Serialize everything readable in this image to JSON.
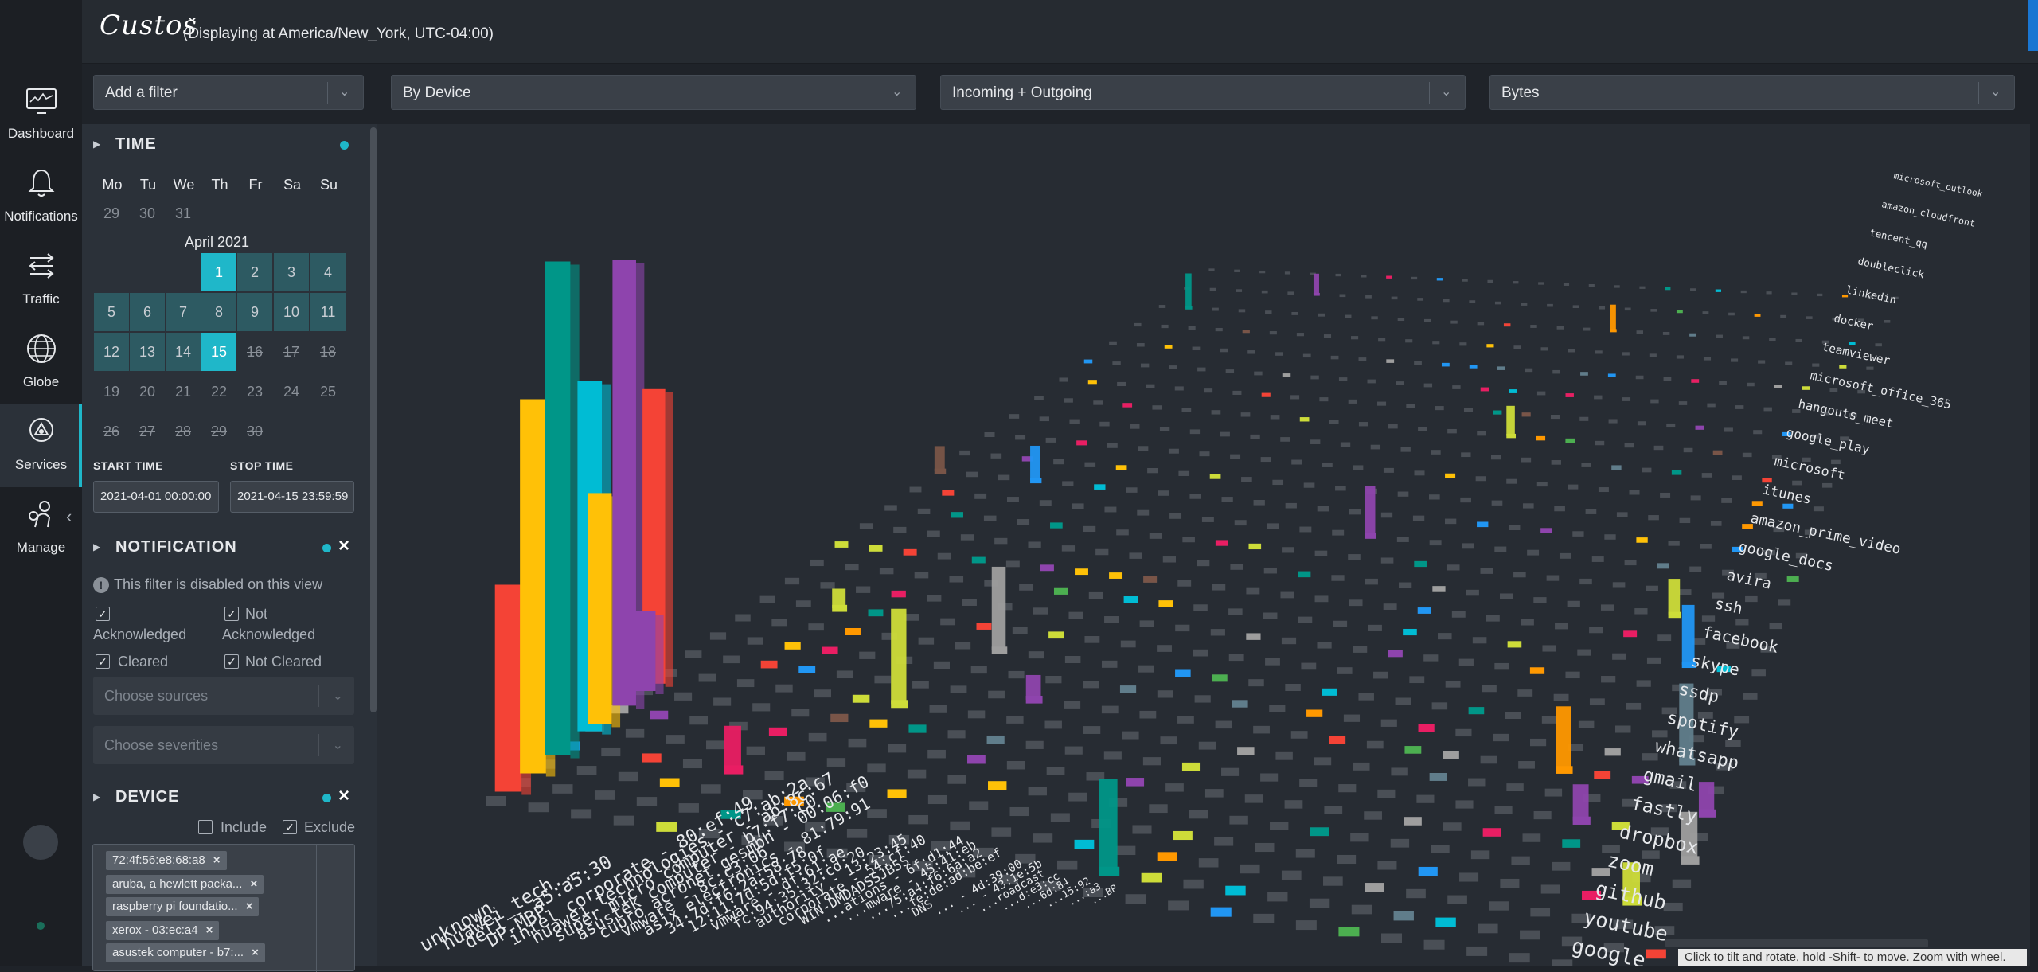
{
  "app": {
    "logo": "Custos",
    "timezone": "(Displaying at America/New_York, UTC-04:00)"
  },
  "nav": [
    {
      "label": "Dashboard",
      "icon": "monitor-icon"
    },
    {
      "label": "Notifications",
      "icon": "bell-icon"
    },
    {
      "label": "Traffic",
      "icon": "arrows-icon"
    },
    {
      "label": "Globe",
      "icon": "globe-icon"
    },
    {
      "label": "Services",
      "icon": "services-icon",
      "active": true
    },
    {
      "label": "Manage",
      "icon": "manage-icon"
    }
  ],
  "filters": {
    "add_filter": "Add a filter",
    "group_by": "By Device",
    "direction": "Incoming + Outgoing",
    "metric": "Bytes"
  },
  "time": {
    "title": "TIME",
    "dow": [
      "Mo",
      "Tu",
      "We",
      "Th",
      "Fr",
      "Sa",
      "Su"
    ],
    "prev_days": [
      "29",
      "30",
      "31"
    ],
    "month": "April 2021",
    "start_label": "START TIME",
    "stop_label": "STOP TIME",
    "start": "2021-04-01 00:00:00",
    "stop": "2021-04-15 23:59:59"
  },
  "notification": {
    "title": "NOTIFICATION",
    "info": "This filter is disabled on this view",
    "acknowledged": "Acknowledged",
    "not_acknowledged_1": "Not",
    "not_acknowledged_2": "Acknowledged",
    "cleared": "Cleared",
    "not_cleared": "Not Cleared",
    "sources_placeholder": "Choose sources",
    "severities_placeholder": "Choose severities"
  },
  "device": {
    "title": "DEVICE",
    "include": "Include",
    "exclude": "Exclude",
    "tags": [
      "72:4f:56:e8:68:a8",
      "aruba, a hewlett packa...",
      "raspberry pi foundatio...",
      "xerox - 03:ec:a4",
      "asustek computer - b7:..."
    ]
  },
  "chart_data": {
    "type": "bar3d",
    "devices": [
      "unknown",
      "huawei_tech...",
      "dell - a5:a5:30",
      "DP-MBP",
      "intel corporate - 80:ef:49",
      "huawei technologies - c7:ab:2a",
      "super micro computer - ab:8c:67",
      "asustek computer - b7:f7:c0",
      "cubro acronet gesmbh - 00:06:f0",
      "vmware - 8c:c3:06",
      "asix electronics - 81:79:91",
      "34:7d:f6:2a:58:78",
      "12:11:7d:5d:f5:0f",
      "vmware - df:61:ae",
      "fc:94:35:32:cd:20",
      "authority - 13:23:45",
      "corporate - 54:cf:40",
      "WIN-DMDADSSJB5S",
      "...ations - 6f:d1:44",
      "...mware - 45:41:eb",
      "...75:a4:f6:6a:a2",
      "...fe:de:ad:be:ef",
      "DNS",
      "... - 4d:39:00",
      "... - 43:1e:5b",
      "...roadcast",
      "...d:e3:cc",
      "...6d:84",
      "...15:92",
      "...:a3",
      "...BP"
    ],
    "services": [
      "google...",
      "youtube",
      "github",
      "zoom",
      "dropbox",
      "fastly",
      "gmail",
      "whatsapp",
      "spotify",
      "ssdp",
      "skype",
      "facebook",
      "ssh",
      "avira",
      "google_docs",
      "amazon_prime_video",
      "itunes",
      "microsoft",
      "google_play",
      "hangouts_meet",
      "microsoft_office_365",
      "teamviewer",
      "docker",
      "linkedin",
      "doubleclick",
      "tencent_qq",
      "amazon_cloudfront",
      "microsoft_outlook"
    ],
    "hint": "Click to tilt and rotate, hold -Shift- to move. Zoom with wheel."
  }
}
